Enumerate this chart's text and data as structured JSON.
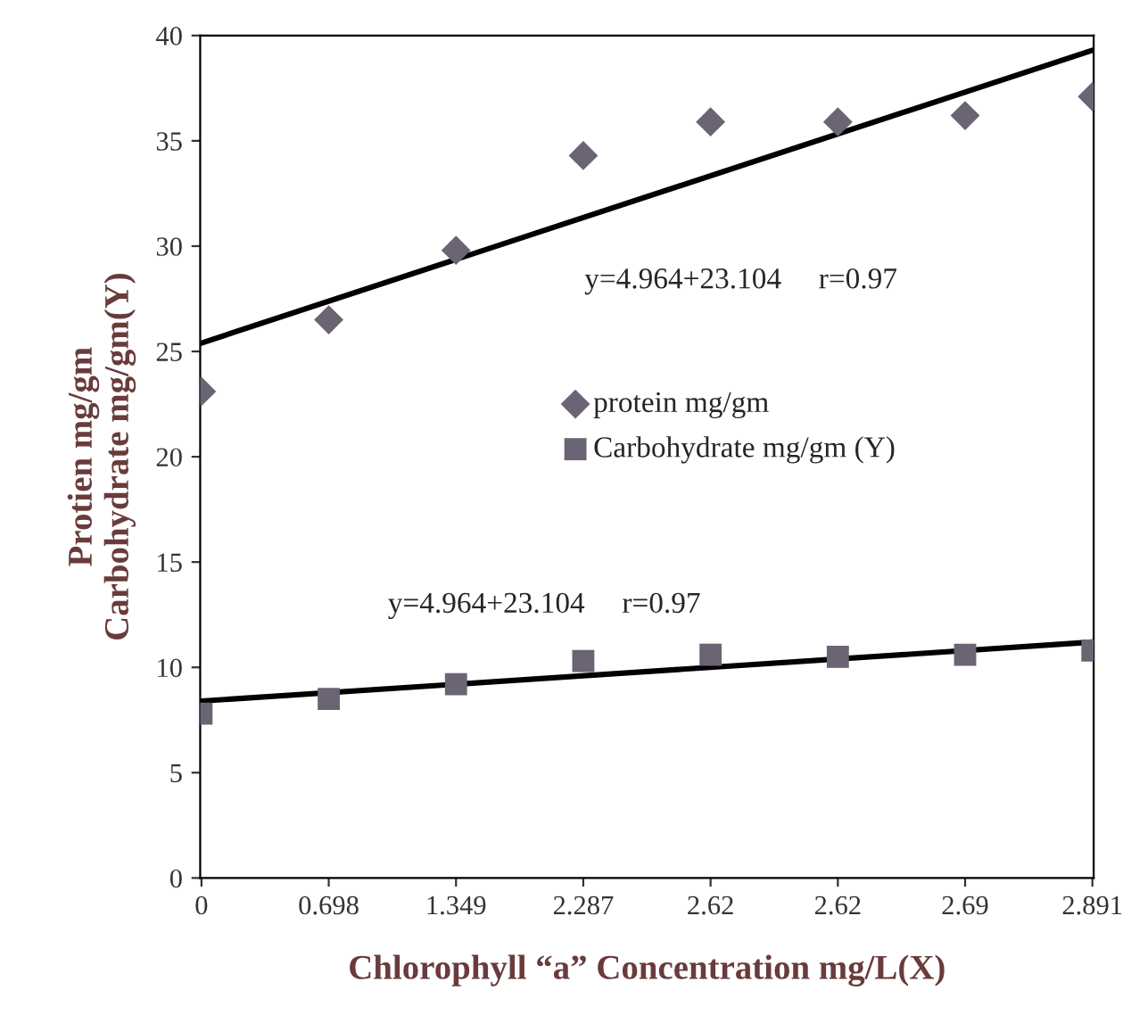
{
  "chart_data": {
    "type": "scatter",
    "xlabel": "Chlorophyll “a” Concentration mg/L(X)",
    "ylabel": "Protien mg/gm\nCarbohydrate mg/gm(Y)",
    "categories": [
      "0",
      "0.698",
      "1.349",
      "2.287",
      "2.62",
      "2.62",
      "2.69",
      "2.891"
    ],
    "series": [
      {
        "name": "protein mg/gm",
        "color": "#6b6475",
        "marker": "diamond",
        "values": [
          23.1,
          26.5,
          29.8,
          34.3,
          35.9,
          35.9,
          36.2,
          37.1
        ]
      },
      {
        "name": "Carbohydrate mg/gm (Y)",
        "color": "#6b6475",
        "marker": "square",
        "values": [
          7.8,
          8.5,
          9.2,
          10.3,
          10.6,
          10.5,
          10.6,
          10.8
        ]
      },
      {
        "type": "line",
        "color": "#000000",
        "marker": "none",
        "x": [
          "0",
          "2.891"
        ],
        "values": [
          25.4,
          39.3
        ]
      },
      {
        "type": "line",
        "color": "#000000",
        "marker": "none",
        "x": [
          "0",
          "2.891"
        ],
        "values": [
          8.4,
          11.2
        ]
      }
    ],
    "annotations": [
      "y=4.964+23.104     r=0.97",
      "y=4.964+23.104     r=0.97"
    ],
    "ylim": [
      0,
      40
    ],
    "yticks": [
      0,
      5,
      10,
      15,
      20,
      25,
      30,
      35,
      40
    ],
    "legend": "center",
    "grid": false
  }
}
